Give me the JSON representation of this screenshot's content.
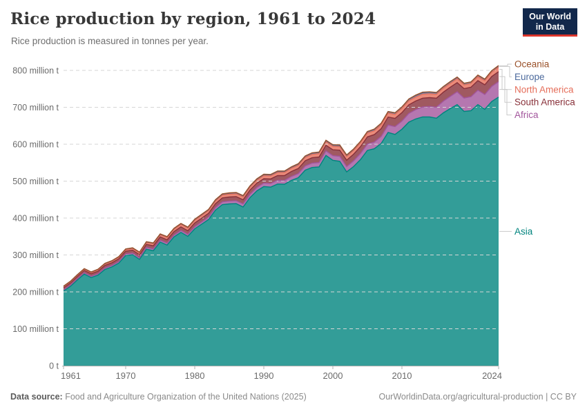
{
  "header": {
    "title": "Rice production by region, 1961 to 2024",
    "subtitle": "Rice production is measured in tonnes per year.",
    "logo_line1": "Our World",
    "logo_line2": "in Data",
    "logo_bg": "#12284b",
    "logo_accent": "#dc352b"
  },
  "footer": {
    "source_label": "Data source:",
    "source_text": "Food and Agriculture Organization of the United Nations (2025)",
    "link_text": "OurWorldinData.org/agricultural-production",
    "separator": "|",
    "license_text": "CC BY"
  },
  "legend": {
    "position": "right",
    "top_cluster": [
      "Oceania",
      "Europe",
      "North America",
      "South America",
      "Africa"
    ],
    "aligned_label": "Asia"
  },
  "chart_data": {
    "type": "area",
    "stacked": true,
    "title": "Rice production by region, 1961 to 2024",
    "unit": "tonnes per year",
    "xlabel": "",
    "ylabel": "",
    "xlim": [
      1961,
      2024
    ],
    "ylim": [
      0,
      830
    ],
    "grid": "horizontal-dashed",
    "legend_position": "right",
    "x_ticks": [
      1961,
      1970,
      1980,
      1990,
      2000,
      2010,
      2024
    ],
    "y_ticks": [
      {
        "value": 0,
        "label": "0 t"
      },
      {
        "value": 100,
        "label": "100 million t"
      },
      {
        "value": 200,
        "label": "200 million t"
      },
      {
        "value": 300,
        "label": "300 million t"
      },
      {
        "value": 400,
        "label": "400 million t"
      },
      {
        "value": 500,
        "label": "500 million t"
      },
      {
        "value": 600,
        "label": "600 million t"
      },
      {
        "value": 700,
        "label": "700 million t"
      },
      {
        "value": 800,
        "label": "800 million t"
      }
    ],
    "x": [
      1961,
      1962,
      1963,
      1964,
      1965,
      1966,
      1967,
      1968,
      1969,
      1970,
      1971,
      1972,
      1973,
      1974,
      1975,
      1976,
      1977,
      1978,
      1979,
      1980,
      1981,
      1982,
      1983,
      1984,
      1985,
      1986,
      1987,
      1988,
      1989,
      1990,
      1991,
      1992,
      1993,
      1994,
      1995,
      1996,
      1997,
      1998,
      1999,
      2000,
      2001,
      2002,
      2003,
      2004,
      2005,
      2006,
      2007,
      2008,
      2009,
      2010,
      2011,
      2012,
      2013,
      2014,
      2015,
      2016,
      2017,
      2018,
      2019,
      2020,
      2021,
      2022,
      2023,
      2024
    ],
    "series": [
      {
        "name": "Asia",
        "color": "#00847E",
        "values": [
          202.4,
          215.1,
          232.3,
          248.2,
          238.7,
          245.5,
          260.8,
          267.4,
          278.0,
          298.3,
          300.6,
          288.0,
          315.5,
          311.5,
          335.0,
          327.0,
          348.9,
          361.1,
          350.4,
          370.9,
          383.3,
          396.0,
          421.4,
          436.5,
          438.4,
          439.0,
          429.9,
          455.4,
          473.7,
          485.2,
          483.8,
          492.2,
          491.5,
          502.0,
          509.3,
          529.8,
          537.1,
          538.4,
          569.6,
          556.5,
          553.7,
          525.1,
          539.5,
          558.4,
          583.2,
          587.6,
          602.1,
          631.9,
          626.5,
          640.6,
          659.8,
          668.4,
          674.1,
          673.8,
          670.4,
          685.1,
          696.4,
          707.2,
          688.7,
          690.8,
          707.3,
          694.6,
          715.7,
          727.6
        ]
      },
      {
        "name": "Africa",
        "color": "#A2559C",
        "values": [
          3.1,
          3.2,
          3.4,
          3.5,
          3.7,
          3.8,
          4.0,
          4.1,
          4.3,
          4.4,
          4.5,
          4.6,
          4.8,
          4.9,
          5.0,
          5.1,
          5.2,
          5.4,
          5.5,
          5.6,
          6.0,
          6.4,
          6.8,
          7.2,
          7.6,
          8.0,
          8.3,
          8.7,
          9.1,
          9.5,
          9.8,
          10.1,
          10.4,
          10.7,
          11.0,
          11.3,
          11.6,
          11.9,
          12.2,
          12.5,
          13.5,
          14.4,
          15.4,
          16.3,
          17.3,
          18.2,
          19.2,
          20.1,
          21.1,
          22.0,
          23.6,
          25.2,
          26.8,
          28.4,
          30.0,
          31.6,
          33.2,
          34.8,
          36.4,
          38.0,
          39.0,
          40.0,
          41.0,
          42.0
        ]
      },
      {
        "name": "South America",
        "color": "#883039",
        "values": [
          5.9,
          6.1,
          6.3,
          6.4,
          6.6,
          6.8,
          7.0,
          7.1,
          7.3,
          7.5,
          7.8,
          8.0,
          8.3,
          8.5,
          8.8,
          9.1,
          9.3,
          9.6,
          9.8,
          10.1,
          10.3,
          10.5,
          10.7,
          10.9,
          11.1,
          11.2,
          11.4,
          11.6,
          11.8,
          12.0,
          12.4,
          12.8,
          13.1,
          13.5,
          13.9,
          14.3,
          14.7,
          15.0,
          15.4,
          15.8,
          16.5,
          17.2,
          18.0,
          18.7,
          19.4,
          20.1,
          20.9,
          21.6,
          22.3,
          23.0,
          23.3,
          23.5,
          23.8,
          24.0,
          24.3,
          24.5,
          24.8,
          25.0,
          25.3,
          25.5,
          25.9,
          26.3,
          26.6,
          27.0
        ]
      },
      {
        "name": "North America",
        "color": "#E56E5A",
        "values": [
          2.5,
          2.7,
          2.8,
          3.0,
          3.2,
          3.3,
          3.5,
          3.7,
          3.8,
          4.0,
          4.3,
          4.6,
          4.9,
          5.2,
          5.5,
          5.8,
          6.1,
          6.4,
          6.7,
          7.0,
          7.1,
          7.2,
          7.3,
          7.4,
          7.4,
          7.5,
          7.6,
          7.7,
          7.8,
          7.9,
          8.1,
          8.2,
          8.4,
          8.6,
          8.7,
          8.9,
          9.1,
          9.2,
          9.4,
          9.6,
          9.7,
          9.9,
          10.0,
          10.2,
          10.3,
          10.4,
          10.6,
          10.7,
          10.9,
          11.0,
          10.9,
          10.8,
          10.8,
          10.7,
          10.6,
          10.6,
          10.5,
          10.4,
          10.4,
          10.3,
          10.7,
          11.1,
          11.6,
          12.0
        ]
      },
      {
        "name": "Europe",
        "color": "#4C6A9C",
        "values": [
          1.5,
          1.5,
          1.6,
          1.6,
          1.7,
          1.7,
          1.7,
          1.8,
          1.8,
          1.8,
          1.9,
          2.0,
          2.0,
          2.1,
          2.2,
          2.3,
          2.3,
          2.4,
          2.5,
          2.6,
          2.7,
          2.7,
          2.8,
          2.8,
          2.9,
          2.9,
          3.0,
          3.0,
          3.1,
          3.1,
          3.1,
          3.1,
          3.1,
          3.1,
          3.2,
          3.2,
          3.2,
          3.2,
          3.2,
          3.2,
          3.3,
          3.4,
          3.5,
          3.7,
          3.8,
          3.9,
          4.0,
          4.1,
          4.2,
          4.3,
          4.3,
          4.2,
          4.2,
          4.1,
          4.1,
          4.1,
          4.0,
          4.0,
          4.0,
          4.0,
          4.0,
          3.9,
          3.9,
          3.8
        ]
      },
      {
        "name": "Oceania",
        "color": "#9A5129",
        "values": [
          0.2,
          0.2,
          0.2,
          0.2,
          0.2,
          0.2,
          0.3,
          0.3,
          0.3,
          0.3,
          0.3,
          0.4,
          0.4,
          0.4,
          0.5,
          0.5,
          0.5,
          0.6,
          0.6,
          0.7,
          0.7,
          0.7,
          0.8,
          0.8,
          0.8,
          0.8,
          0.8,
          0.9,
          0.9,
          0.9,
          0.9,
          1.0,
          1.0,
          1.0,
          1.1,
          1.0,
          1.1,
          1.1,
          1.1,
          1.1,
          1.2,
          1.0,
          0.7,
          0.6,
          0.4,
          1.0,
          0.2,
          0.1,
          0.1,
          0.2,
          0.7,
          0.9,
          1.2,
          0.8,
          0.7,
          0.3,
          0.8,
          0.6,
          0.2,
          0.1,
          0.4,
          0.5,
          0.5,
          0.6
        ]
      }
    ]
  },
  "style": {
    "grid_color": "#d6d6d6",
    "axis_color": "#b0b0b0",
    "tick_label_color": "#6b6b6b",
    "connector_color": "#c9c9c9",
    "fill_opacity": 0.8
  }
}
